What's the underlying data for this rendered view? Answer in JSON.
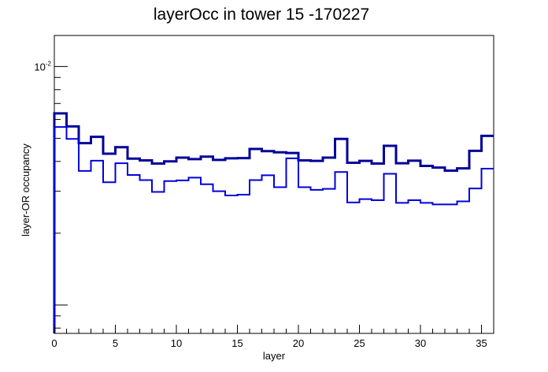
{
  "chart_data": {
    "type": "line",
    "title": "layerOcc in tower 15 -170227",
    "xlabel": "layer",
    "ylabel": "layer-OR occupancy",
    "x_range": [
      0,
      36
    ],
    "x_ticks": [
      0,
      5,
      10,
      15,
      20,
      25,
      30,
      35
    ],
    "y_scale": "log",
    "y_range": [
      0.00076,
      0.0135
    ],
    "y_tick_label": {
      "base": "10",
      "exponent": "-2",
      "value": 0.01
    },
    "bin_edges": [
      0,
      1,
      2,
      3,
      4,
      5,
      6,
      7,
      8,
      9,
      10,
      11,
      12,
      13,
      14,
      15,
      16,
      17,
      18,
      19,
      20,
      21,
      22,
      23,
      24,
      25,
      26,
      27,
      28,
      29,
      30,
      31,
      32,
      33,
      34,
      35,
      36
    ],
    "grid": false,
    "legend": "none",
    "series": [
      {
        "color": "#000099",
        "style": "thick",
        "values": [
          0.00636,
          0.00561,
          0.00477,
          0.00507,
          0.00431,
          0.00459,
          0.00411,
          0.00404,
          0.00392,
          0.004,
          0.00415,
          0.00409,
          0.00419,
          0.00406,
          0.00412,
          0.00413,
          0.00451,
          0.00442,
          0.00437,
          0.00434,
          0.00404,
          0.00402,
          0.00415,
          0.00497,
          0.00395,
          0.00402,
          0.00392,
          0.00465,
          0.00393,
          0.00403,
          0.00383,
          0.00377,
          0.00366,
          0.00374,
          0.00443,
          0.00512
        ]
      },
      {
        "color": "#0000dd",
        "style": "thin",
        "values": [
          0.00558,
          0.00497,
          0.00365,
          0.00403,
          0.00327,
          0.00393,
          0.00351,
          0.00334,
          0.00298,
          0.00331,
          0.00333,
          0.00342,
          0.00321,
          0.003,
          0.00288,
          0.0029,
          0.00334,
          0.0035,
          0.00312,
          0.00412,
          0.00312,
          0.00304,
          0.00307,
          0.00361,
          0.00269,
          0.00278,
          0.00275,
          0.00355,
          0.00268,
          0.00275,
          0.00268,
          0.00264,
          0.00264,
          0.00272,
          0.00308,
          0.00373
        ]
      }
    ]
  }
}
